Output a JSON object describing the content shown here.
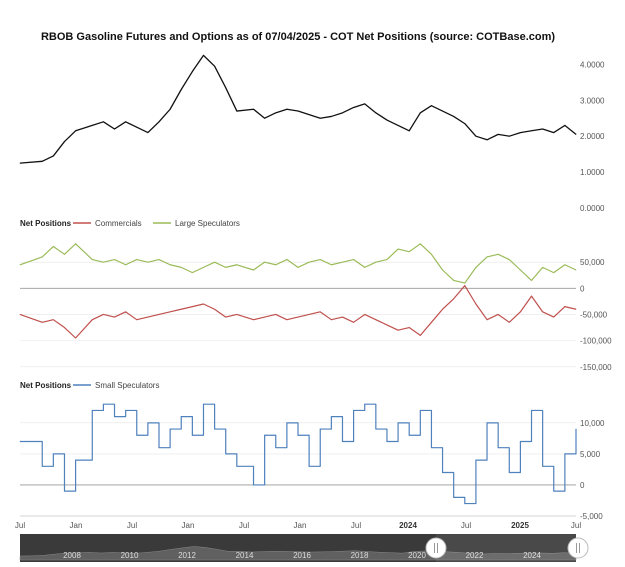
{
  "title": "RBOB Gasoline Futures and Options as of 07/04/2025 - COT Net Positions (source: COTBase.com)",
  "colors": {
    "price": "#111111",
    "commercials": "#c0504d",
    "large_speculators": "#9bbb59",
    "small_speculators": "#4f81bd",
    "grid": "#e6e6e6",
    "zero_line": "#999999",
    "navigator_bg": "#3a3a3a",
    "navigator_series": "#6a6a6a"
  },
  "panel2_legend": {
    "header": "Net Positions",
    "items": [
      {
        "label": "Commercials",
        "color": "#c0504d"
      },
      {
        "label": "Large Speculators",
        "color": "#9bbb59"
      }
    ]
  },
  "panel3_legend": {
    "header": "Net Positions",
    "items": [
      {
        "label": "Small Speculators",
        "color": "#4f81bd"
      }
    ]
  },
  "x_axis_labels": [
    {
      "text": "Jul",
      "bold": false
    },
    {
      "text": "Jan",
      "bold": false
    },
    {
      "text": "Jul",
      "bold": false
    },
    {
      "text": "Jan",
      "bold": false
    },
    {
      "text": "Jul",
      "bold": false
    },
    {
      "text": "Jan",
      "bold": false
    },
    {
      "text": "Jul",
      "bold": false
    },
    {
      "text": "2024",
      "bold": true
    },
    {
      "text": "Jul",
      "bold": false
    },
    {
      "text": "2025",
      "bold": true
    },
    {
      "text": "Jul",
      "bold": false
    }
  ],
  "navigator_labels": [
    "2008",
    "2010",
    "2012",
    "2014",
    "2016",
    "2018",
    "2020",
    "2022",
    "2024"
  ],
  "chart_data": [
    {
      "type": "line",
      "id": "price",
      "title": "RBOB Gasoline Futures and Options as of 07/04/2025 - COT Net Positions (source: COTBase.com)",
      "ylim": [
        0,
        4.4
      ],
      "y_ticks": [
        "4.0000",
        "3.0000",
        "2.0000",
        "1.0000",
        "0.0000"
      ],
      "y_tick_values": [
        4,
        3,
        2,
        1,
        0
      ],
      "grid": false,
      "x": [
        0,
        4,
        6,
        8,
        10,
        13,
        15,
        17,
        19,
        21,
        23,
        25,
        27,
        29,
        31,
        33,
        35,
        37,
        39,
        42,
        44,
        46,
        48,
        50,
        52,
        54,
        56,
        58,
        60,
        62,
        64,
        66,
        68,
        70,
        72,
        74,
        76,
        78,
        80,
        82,
        84,
        86,
        88,
        90,
        92,
        94,
        96,
        98,
        100
      ],
      "series": [
        {
          "name": "",
          "values": [
            1.25,
            1.3,
            1.45,
            1.85,
            2.15,
            2.3,
            2.4,
            2.2,
            2.4,
            2.25,
            2.1,
            2.4,
            2.75,
            3.3,
            3.8,
            4.25,
            3.95,
            3.35,
            2.7,
            2.75,
            2.5,
            2.65,
            2.75,
            2.7,
            2.6,
            2.5,
            2.55,
            2.65,
            2.8,
            2.9,
            2.65,
            2.45,
            2.3,
            2.15,
            2.65,
            2.85,
            2.7,
            2.55,
            2.35,
            2.0,
            1.9,
            2.05,
            2.0,
            2.1,
            2.15,
            2.2,
            2.1,
            2.3,
            2.05
          ]
        }
      ]
    },
    {
      "type": "line",
      "id": "net_positions_commercial_large",
      "ylim": [
        -160000,
        100000
      ],
      "y_ticks": [
        "50,000",
        "0",
        "-50,000",
        "-100,000",
        "-150,000"
      ],
      "y_tick_values": [
        50000,
        0,
        -50000,
        -100000,
        -150000
      ],
      "grid": true,
      "x": [
        0,
        4,
        6,
        8,
        10,
        13,
        15,
        17,
        19,
        21,
        23,
        25,
        27,
        29,
        31,
        33,
        35,
        37,
        39,
        42,
        44,
        46,
        48,
        50,
        52,
        54,
        56,
        58,
        60,
        62,
        64,
        66,
        68,
        70,
        72,
        74,
        76,
        78,
        80,
        82,
        84,
        86,
        88,
        90,
        92,
        94,
        96,
        98,
        100
      ],
      "series": [
        {
          "name": "Commercials",
          "values": [
            -50000,
            -65000,
            -60000,
            -75000,
            -95000,
            -60000,
            -50000,
            -55000,
            -45000,
            -60000,
            -55000,
            -50000,
            -45000,
            -40000,
            -35000,
            -30000,
            -40000,
            -55000,
            -50000,
            -60000,
            -55000,
            -50000,
            -60000,
            -55000,
            -50000,
            -45000,
            -60000,
            -55000,
            -65000,
            -50000,
            -60000,
            -70000,
            -80000,
            -75000,
            -90000,
            -65000,
            -40000,
            -20000,
            5000,
            -30000,
            -60000,
            -50000,
            -65000,
            -45000,
            -15000,
            -45000,
            -55000,
            -35000,
            -40000
          ]
        },
        {
          "name": "Large Speculators",
          "values": [
            45000,
            60000,
            80000,
            65000,
            85000,
            55000,
            50000,
            55000,
            45000,
            55000,
            50000,
            55000,
            45000,
            40000,
            30000,
            40000,
            50000,
            40000,
            45000,
            35000,
            50000,
            45000,
            55000,
            40000,
            50000,
            55000,
            45000,
            50000,
            55000,
            40000,
            50000,
            55000,
            75000,
            70000,
            85000,
            65000,
            35000,
            15000,
            10000,
            40000,
            60000,
            65000,
            55000,
            35000,
            15000,
            40000,
            30000,
            45000,
            35000
          ]
        }
      ]
    },
    {
      "type": "line",
      "id": "net_positions_small",
      "ylim": [
        -5000,
        14000
      ],
      "y_ticks": [
        "10,000",
        "5,000",
        "0",
        "-5,000"
      ],
      "y_tick_values": [
        10000,
        5000,
        0,
        -5000
      ],
      "grid": true,
      "x": [
        0,
        4,
        6,
        8,
        10,
        13,
        15,
        17,
        19,
        21,
        23,
        25,
        27,
        29,
        31,
        33,
        35,
        37,
        39,
        42,
        44,
        46,
        48,
        50,
        52,
        54,
        56,
        58,
        60,
        62,
        64,
        66,
        68,
        70,
        72,
        74,
        76,
        78,
        80,
        82,
        84,
        86,
        88,
        90,
        92,
        94,
        96,
        98,
        100
      ],
      "series": [
        {
          "name": "Small Speculators",
          "values": [
            7000,
            3000,
            5000,
            -1000,
            4000,
            12000,
            13000,
            11000,
            12000,
            8000,
            10000,
            6000,
            9000,
            11000,
            8000,
            13000,
            9000,
            5000,
            3000,
            0,
            8000,
            6000,
            10000,
            8000,
            3000,
            9000,
            11000,
            7000,
            12000,
            13000,
            9000,
            7000,
            10000,
            8000,
            12000,
            6000,
            2000,
            -2000,
            -3000,
            4000,
            10000,
            6000,
            2000,
            7000,
            12000,
            3000,
            -1000,
            5000,
            9000
          ]
        }
      ]
    }
  ]
}
